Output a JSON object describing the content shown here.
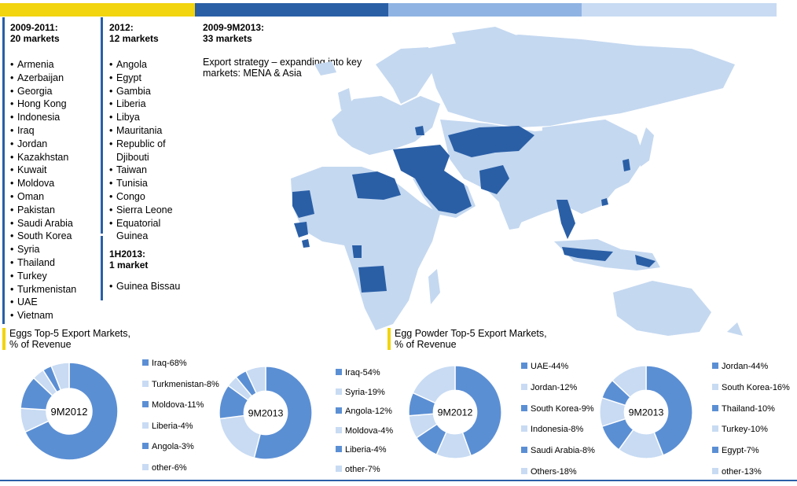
{
  "colors": {
    "yellow": "#f2d40f",
    "dark_blue": "#2a5fa6",
    "mid_blue": "#5b8fd4",
    "light_blue": "#a9c6ea",
    "pale_blue": "#c8dbf3",
    "map_land": "#c4d8f0",
    "map_highlight": "#2a5fa6"
  },
  "columns": {
    "c1": {
      "title1": "2009-2011:",
      "title2": "20 markets",
      "items": [
        "Armenia",
        "Azerbaijan",
        "Georgia",
        "Hong Kong",
        "Indonesia",
        "Iraq",
        "Jordan",
        "Kazakhstan",
        "Kuwait",
        "Moldova",
        "Oman",
        "Pakistan",
        "Saudi Arabia",
        "South Korea",
        "Syria",
        "Thailand",
        "Turkey",
        "Turkmenistan",
        "UAE",
        "Vietnam"
      ]
    },
    "c2": {
      "title1": "2012:",
      "title2": "12 markets",
      "items": [
        "Angola",
        "Egypt",
        "Gambia",
        "Liberia",
        "Libya",
        "Mauritania",
        "Republic of",
        "Djibouti",
        "Taiwan",
        "Tunisia",
        "Congo",
        "Sierra Leone",
        "Equatorial",
        "Guinea"
      ]
    },
    "c3": {
      "title1": "1H2013:",
      "title2": "1 market",
      "items": [
        "Guinea Bissau"
      ]
    },
    "c4": {
      "title1": "2009-9M2013:",
      "title2": "33 markets"
    }
  },
  "strategy_text": "Export strategy – expanding into key markets: MENA & Asia",
  "sections": {
    "eggs_title1": "Eggs Top-5 Export Markets,",
    "eggs_title2": "% of Revenue",
    "powder_title1": "Egg Powder Top-5 Export Markets,",
    "powder_title2": "% of Revenue"
  },
  "chart_data": [
    {
      "type": "pie",
      "title": "9M2012",
      "section": "Eggs Top-5 Export Markets, % of Revenue",
      "labels": [
        "Iraq-68%",
        "Turkmenistan-8%",
        "Moldova-11%",
        "Liberia-4%",
        "Angola-3%",
        "other-6%"
      ],
      "categories": [
        "Iraq",
        "Turkmenistan",
        "Moldova",
        "Liberia",
        "Angola",
        "other"
      ],
      "values": [
        68,
        8,
        11,
        4,
        3,
        6
      ],
      "colors": [
        "#5b8fd4",
        "#c8dbf3",
        "#5b8fd4",
        "#c8dbf3",
        "#5b8fd4",
        "#c8dbf3"
      ]
    },
    {
      "type": "pie",
      "title": "9M2013",
      "section": "Eggs Top-5 Export Markets, % of Revenue",
      "labels": [
        "Iraq-54%",
        "Syria-19%",
        "Angola-12%",
        "Moldova-4%",
        "Liberia-4%",
        "other-7%"
      ],
      "categories": [
        "Iraq",
        "Syria",
        "Angola",
        "Moldova",
        "Liberia",
        "other"
      ],
      "values": [
        54,
        19,
        12,
        4,
        4,
        7
      ],
      "colors": [
        "#5b8fd4",
        "#c8dbf3",
        "#5b8fd4",
        "#c8dbf3",
        "#5b8fd4",
        "#c8dbf3"
      ]
    },
    {
      "type": "pie",
      "title": "9M2012",
      "section": "Egg Powder Top-5 Export Markets, % of Revenue",
      "labels": [
        "UAE-44%",
        "Jordan-12%",
        "South Korea-9%",
        "Indonesia-8%",
        "Saudi Arabia-8%",
        "Others-18%"
      ],
      "categories": [
        "UAE",
        "Jordan",
        "South Korea",
        "Indonesia",
        "Saudi Arabia",
        "Others"
      ],
      "values": [
        44,
        12,
        9,
        8,
        8,
        18
      ],
      "colors": [
        "#5b8fd4",
        "#c8dbf3",
        "#5b8fd4",
        "#c8dbf3",
        "#5b8fd4",
        "#c8dbf3"
      ]
    },
    {
      "type": "pie",
      "title": "9M2013",
      "section": "Egg Powder Top-5 Export Markets, % of Revenue",
      "labels": [
        "Jordan-44%",
        "South Korea-16%",
        "Thailand-10%",
        "Turkey-10%",
        "Egypt-7%",
        "other-13%"
      ],
      "categories": [
        "Jordan",
        "South Korea",
        "Thailand",
        "Turkey",
        "Egypt",
        "other"
      ],
      "values": [
        44,
        16,
        10,
        10,
        7,
        13
      ],
      "colors": [
        "#5b8fd4",
        "#c8dbf3",
        "#5b8fd4",
        "#c8dbf3",
        "#5b8fd4",
        "#c8dbf3"
      ]
    }
  ]
}
